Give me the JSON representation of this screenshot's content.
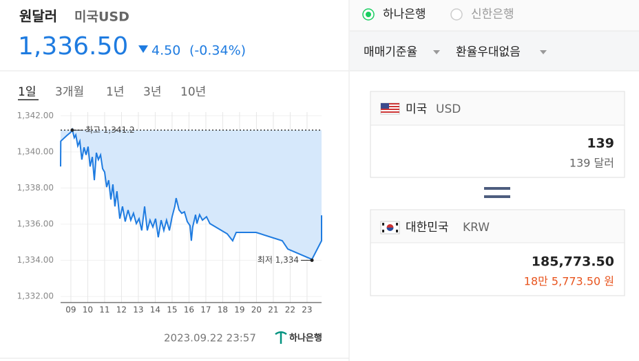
{
  "header": {
    "title": "원달러",
    "subtitle": "미국USD",
    "price": "1,336.50",
    "change": "4.50",
    "change_pct": "(-0.34%)"
  },
  "period_tabs": [
    "1일",
    "3개월",
    "1년",
    "3년",
    "10년"
  ],
  "chart_data": {
    "type": "line",
    "color": "#1e7be0",
    "fill_color": "#d6e8fb",
    "grid": true,
    "x": [
      8.39,
      8.4,
      8.76,
      9.0,
      9.08,
      9.2,
      9.29,
      9.41,
      9.53,
      9.65,
      9.78,
      9.9,
      10.02,
      10.14,
      10.27,
      10.39,
      10.51,
      10.63,
      10.76,
      10.88,
      11.0,
      11.12,
      11.24,
      11.37,
      11.49,
      11.61,
      11.73,
      11.9,
      12.06,
      12.22,
      12.39,
      12.55,
      12.71,
      12.88,
      13.04,
      13.2,
      13.37,
      13.53,
      13.69,
      13.86,
      14.02,
      14.18,
      14.35,
      14.51,
      14.67,
      14.84,
      15.0,
      15.16,
      15.24,
      15.41,
      15.57,
      15.73,
      15.9,
      16.06,
      16.14,
      16.22,
      16.39,
      16.47,
      16.63,
      16.8,
      17.04,
      17.24,
      18.27,
      18.59,
      18.8,
      19.98,
      21.53,
      21.86,
      23.29,
      23.86,
      23.86
    ],
    "values": [
      1339.19,
      1340.59,
      1340.9,
      1341.09,
      1341.24,
      1340.78,
      1340.94,
      1340.33,
      1340.59,
      1339.57,
      1340.25,
      1339.83,
      1340.29,
      1339.19,
      1339.72,
      1338.43,
      1339.95,
      1339.57,
      1339.83,
      1339.07,
      1338.88,
      1338.05,
      1338.43,
      1337.36,
      1338.2,
      1336.98,
      1337.82,
      1336.3,
      1336.98,
      1336.14,
      1336.78,
      1336.22,
      1336.6,
      1336.03,
      1336.3,
      1335.65,
      1336.98,
      1335.65,
      1336.22,
      1335.84,
      1336.3,
      1335.27,
      1336.22,
      1335.65,
      1336.22,
      1335.65,
      1336.41,
      1336.98,
      1337.44,
      1336.79,
      1336.6,
      1336.68,
      1336.14,
      1335.92,
      1335.08,
      1335.84,
      1336.52,
      1336.03,
      1336.52,
      1336.22,
      1336.41,
      1336.03,
      1335.46,
      1335.08,
      1335.54,
      1335.54,
      1335.08,
      1334.62,
      1334.05,
      1335.08,
      1336.49
    ],
    "xlim": [
      8.39,
      23.86
    ],
    "ylim": [
      1331.66,
      1342.2
    ],
    "xticks": [
      {
        "value": 9,
        "label": "09"
      },
      10,
      11,
      12,
      13,
      14,
      15,
      16,
      17,
      18,
      19,
      20,
      21,
      22,
      23
    ],
    "yticks": [
      {
        "value": 1332,
        "label": "1,332.00"
      },
      {
        "value": 1334,
        "label": "1,334.00"
      },
      {
        "value": 1336,
        "label": "1,336.00"
      },
      {
        "value": 1338,
        "label": "1,338.00"
      },
      {
        "value": 1340,
        "label": "1,340.00"
      },
      {
        "value": 1342,
        "label": "1,342.00"
      }
    ],
    "high": {
      "label": "최고 1,341.2",
      "x": 9.08,
      "value": 1341.2
    },
    "low": {
      "label": "최저 1,334",
      "x": 23.29,
      "value": 1334
    }
  },
  "timestamp": "2023.09.22 23:57",
  "source_logo": "하나은행",
  "banks": [
    "하나은행",
    "신한은행"
  ],
  "dropdowns": [
    "매매기준율",
    "환율우대없음"
  ],
  "converter": {
    "from": {
      "country": "미국",
      "code": "USD",
      "amount": "139",
      "amount_text": "139 달러"
    },
    "to": {
      "country": "대한민국",
      "code": "KRW",
      "amount": "185,773.50",
      "amount_text": "18만 5,773.50 원"
    }
  }
}
